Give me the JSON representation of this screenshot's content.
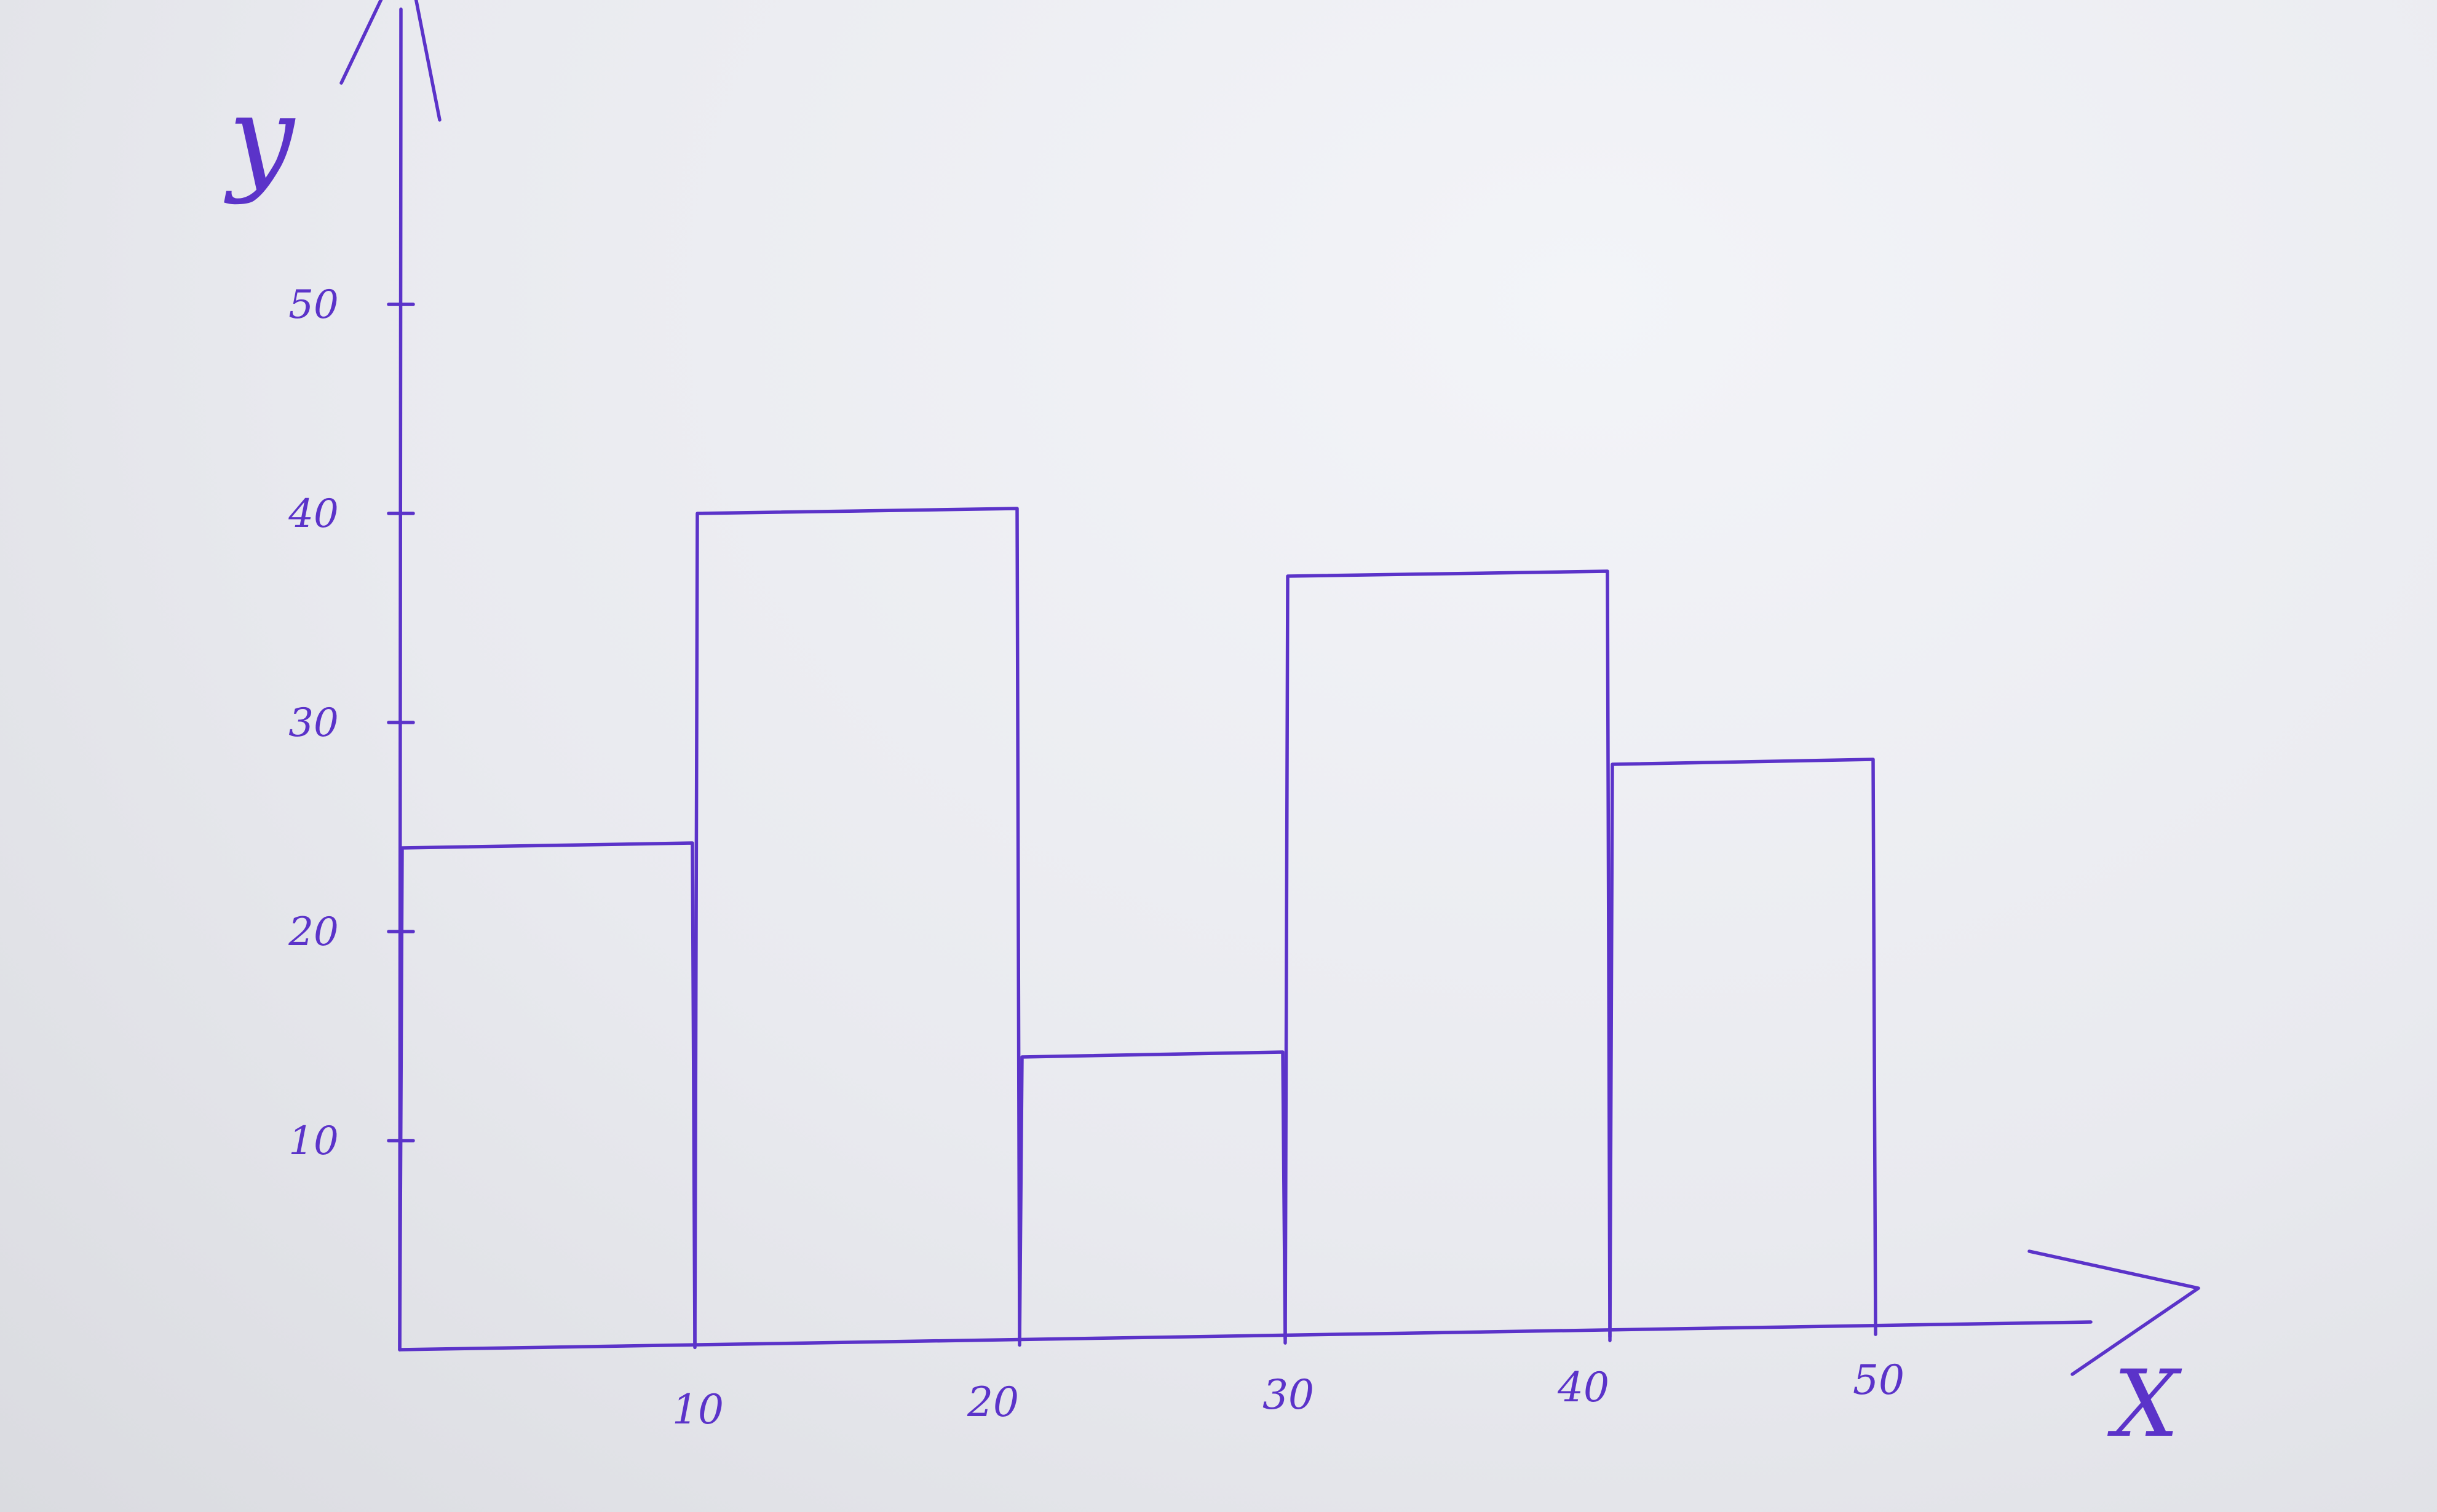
{
  "chart_data": {
    "type": "bar",
    "title": "",
    "xlabel": "X",
    "ylabel": "y",
    "x_ticks": [
      "10",
      "20",
      "30",
      "40",
      "50"
    ],
    "y_ticks": [
      "10",
      "20",
      "30",
      "40",
      "50"
    ],
    "xlim": [
      0,
      55
    ],
    "ylim": [
      0,
      55
    ],
    "bins": [
      {
        "x0": 0,
        "x1": 10,
        "value": 24
      },
      {
        "x0": 10,
        "x1": 21,
        "value": 40
      },
      {
        "x0": 21,
        "x1": 30,
        "value": 14
      },
      {
        "x0": 30,
        "x1": 41,
        "value": 37
      },
      {
        "x0": 41,
        "x1": 50,
        "value": 28
      }
    ],
    "grid": false,
    "legend": "none",
    "ink_color": "#5b33c9"
  }
}
